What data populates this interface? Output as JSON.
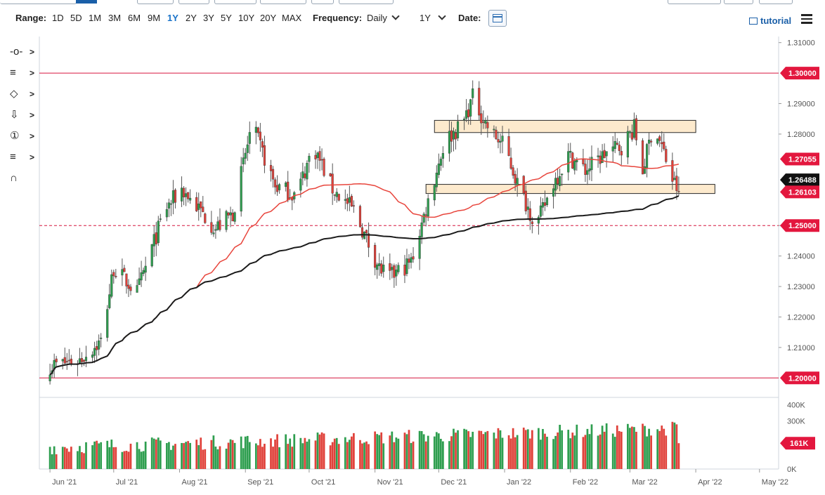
{
  "toolbar": {
    "range_label": "Range:",
    "ranges": [
      "1D",
      "5D",
      "1M",
      "3M",
      "6M",
      "9M",
      "1Y",
      "2Y",
      "3Y",
      "5Y",
      "10Y",
      "20Y",
      "MAX"
    ],
    "active_range": "1Y",
    "frequency_label": "Frequency:",
    "frequency_value": "Daily",
    "period_value": "1Y",
    "date_label": "Date:",
    "tutorial_label": "tutorial"
  },
  "colors": {
    "up": "#2e9e4f",
    "down": "#e0413a",
    "ma_fast": "#e8453c",
    "ma_slow": "#1b1b1b",
    "level_line": "#d6163f",
    "zone_fill": "#fde6c4",
    "zone_border": "#2a2a2a",
    "price_tag_red": "#e3173e",
    "price_tag_dark": "#111111"
  },
  "tool_icons": [
    "crosshair-icon",
    "trendline-icon",
    "shapes-icon",
    "arrow-down-icon",
    "number-marker-icon",
    "fibonacci-icon",
    "magnet-icon"
  ],
  "chart_data": {
    "type": "candlestick",
    "y_axis": {
      "ylim": [
        1.195,
        1.312
      ],
      "ticks": [
        "1.31000",
        "1.29000",
        "1.28000",
        "1.25000",
        "1.24000",
        "1.23000",
        "1.22000",
        "1.21000"
      ]
    },
    "x_axis": {
      "labels": [
        "Jun '21",
        "Jul '21",
        "Aug '21",
        "Sep '21",
        "Oct '21",
        "Nov '21",
        "Dec '21",
        "Jan '22",
        "Feb '22",
        "Mar '22",
        "Apr '22",
        "May '22"
      ]
    },
    "price_tags": {
      "level_high": "1.30000",
      "level_low": "1.20000",
      "level_dashed": "1.25000",
      "ma_fast_value": "1.27055",
      "ma_slow_value": "1.26488",
      "last_price": "1.26103"
    },
    "horizontal_levels": [
      1.3,
      1.25,
      1.2
    ],
    "zones": [
      {
        "low": 1.2805,
        "high": 1.2845,
        "start": "2021-11-29",
        "end": "2022-04-01"
      },
      {
        "low": 1.2605,
        "high": 1.2635,
        "start": "2021-11-25",
        "end": "2022-04-10"
      }
    ],
    "close_anchors": [
      [
        "2021-06-01",
        1.204
      ],
      [
        "2021-06-15",
        1.206
      ],
      [
        "2021-06-25",
        1.212
      ],
      [
        "2021-07-01",
        1.236
      ],
      [
        "2021-07-12",
        1.228
      ],
      [
        "2021-07-25",
        1.255
      ],
      [
        "2021-08-02",
        1.262
      ],
      [
        "2021-08-18",
        1.249
      ],
      [
        "2021-08-26",
        1.254
      ],
      [
        "2021-09-04",
        1.283
      ],
      [
        "2021-09-15",
        1.263
      ],
      [
        "2021-09-25",
        1.26
      ],
      [
        "2021-10-03",
        1.276
      ],
      [
        "2021-10-12",
        1.262
      ],
      [
        "2021-10-22",
        1.255
      ],
      [
        "2021-11-03",
        1.236
      ],
      [
        "2021-11-08",
        1.233
      ],
      [
        "2021-11-18",
        1.238
      ],
      [
        "2021-11-26",
        1.258
      ],
      [
        "2021-12-04",
        1.278
      ],
      [
        "2021-12-12",
        1.283
      ],
      [
        "2021-12-17",
        1.292
      ],
      [
        "2021-12-25",
        1.281
      ],
      [
        "2022-01-01",
        1.276
      ],
      [
        "2022-01-08",
        1.262
      ],
      [
        "2022-01-16",
        1.25
      ],
      [
        "2022-01-24",
        1.264
      ],
      [
        "2022-01-31",
        1.273
      ],
      [
        "2022-02-08",
        1.268
      ],
      [
        "2022-02-18",
        1.274
      ],
      [
        "2022-02-25",
        1.276
      ],
      [
        "2022-03-03",
        1.282
      ],
      [
        "2022-03-07",
        1.268
      ],
      [
        "2022-03-12",
        1.283
      ],
      [
        "2022-03-16",
        1.276
      ],
      [
        "2022-03-21",
        1.265
      ],
      [
        "2022-03-24",
        1.261
      ]
    ],
    "volume": {
      "ylim": [
        0,
        420000
      ],
      "ticks": [
        "400K",
        "300K",
        "0K"
      ],
      "last_label": "161K",
      "last": 161000
    }
  }
}
